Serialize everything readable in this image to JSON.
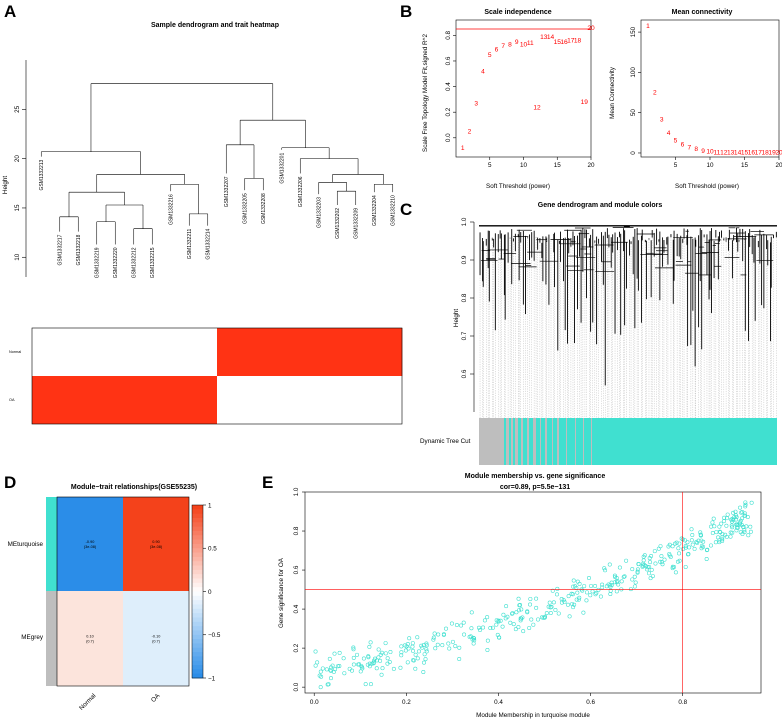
{
  "panel_labels": [
    "A",
    "B",
    "C",
    "D",
    "E"
  ],
  "colors": {
    "red": "#ff0000",
    "heat_red": "#ff3314",
    "turquoise": "#40e0d0",
    "grey": "#bebebe",
    "module_blue": "#2b8de8",
    "module_pink": "#fce4dc",
    "module_lightblue": "#deeefb",
    "module_orange": "#f4421b"
  },
  "chart_data": [
    {
      "id": "A",
      "type": "dendrogram_heatmap",
      "title": "Sample dendrogram and trait heatmap",
      "ylabel": "Height",
      "ylim": [
        8,
        30
      ],
      "yticks": [
        "10",
        "15",
        "20",
        "25"
      ],
      "leaves": [
        "GSM1332213",
        "GSM1332217",
        "GSM1332218",
        "GSM1332219",
        "GSM1332220",
        "GSM1332212",
        "GSM1332215",
        "GSM1332216",
        "GSM1332211",
        "GSM1332214",
        "GSM1332207",
        "GSM1332205",
        "GSM1332208",
        "GSM1332201",
        "GSM1332206",
        "GSM1332203",
        "GSM1332202",
        "GSM1332209",
        "GSM1332204",
        "GSM1332210"
      ],
      "traits": [
        "Normal",
        "OA"
      ],
      "trait_rows": {
        "Normal": [
          0,
          0,
          0,
          0,
          0,
          0,
          0,
          0,
          0,
          0,
          1,
          1,
          1,
          1,
          1,
          1,
          1,
          1,
          1,
          1
        ],
        "OA": [
          1,
          1,
          1,
          1,
          1,
          1,
          1,
          1,
          1,
          1,
          0,
          0,
          0,
          0,
          0,
          0,
          0,
          0,
          0,
          0
        ]
      }
    },
    {
      "id": "B1",
      "type": "scatter",
      "title": "Scale independence",
      "xlabel": "Soft Threshold (power)",
      "ylabel": "Scale Free Topology Model Fit,signed R^2",
      "xlim": [
        0,
        20
      ],
      "ylim": [
        -0.15,
        0.92
      ],
      "xticks": [
        "5",
        "10",
        "15",
        "20"
      ],
      "yticks": [
        "0.0",
        "0.2",
        "0.4",
        "0.6",
        "0.8"
      ],
      "hline": 0.85,
      "points": [
        {
          "x": 1,
          "y": -0.08,
          "label": "1"
        },
        {
          "x": 2,
          "y": 0.05,
          "label": "2"
        },
        {
          "x": 3,
          "y": 0.27,
          "label": "3"
        },
        {
          "x": 4,
          "y": 0.52,
          "label": "4"
        },
        {
          "x": 5,
          "y": 0.65,
          "label": "5"
        },
        {
          "x": 6,
          "y": 0.69,
          "label": "6"
        },
        {
          "x": 7,
          "y": 0.72,
          "label": "7"
        },
        {
          "x": 8,
          "y": 0.73,
          "label": "8"
        },
        {
          "x": 9,
          "y": 0.75,
          "label": "9"
        },
        {
          "x": 10,
          "y": 0.73,
          "label": "10"
        },
        {
          "x": 11,
          "y": 0.74,
          "label": "11"
        },
        {
          "x": 12,
          "y": 0.24,
          "label": "12"
        },
        {
          "x": 13,
          "y": 0.79,
          "label": "13"
        },
        {
          "x": 14,
          "y": 0.79,
          "label": "14"
        },
        {
          "x": 15,
          "y": 0.75,
          "label": "15"
        },
        {
          "x": 16,
          "y": 0.75,
          "label": "16"
        },
        {
          "x": 17,
          "y": 0.76,
          "label": "17"
        },
        {
          "x": 18,
          "y": 0.76,
          "label": "18"
        },
        {
          "x": 19,
          "y": 0.28,
          "label": "19"
        },
        {
          "x": 20,
          "y": 0.86,
          "label": "20"
        }
      ]
    },
    {
      "id": "B2",
      "type": "scatter",
      "title": "Mean connectivity",
      "xlabel": "Soft Threshold (power)",
      "ylabel": "Mean Connectivity",
      "xlim": [
        0,
        20
      ],
      "ylim": [
        -5,
        165
      ],
      "xticks": [
        "5",
        "10",
        "15",
        "20"
      ],
      "yticks": [
        "0",
        "50",
        "100",
        "150"
      ],
      "points": [
        {
          "x": 1,
          "y": 158,
          "label": "1"
        },
        {
          "x": 2,
          "y": 75,
          "label": "2"
        },
        {
          "x": 3,
          "y": 42,
          "label": "3"
        },
        {
          "x": 4,
          "y": 25,
          "label": "4"
        },
        {
          "x": 5,
          "y": 16,
          "label": "5"
        },
        {
          "x": 6,
          "y": 11,
          "label": "6"
        },
        {
          "x": 7,
          "y": 7,
          "label": "7"
        },
        {
          "x": 8,
          "y": 5,
          "label": "8"
        },
        {
          "x": 9,
          "y": 3,
          "label": "9"
        },
        {
          "x": 10,
          "y": 2,
          "label": "10"
        },
        {
          "x": 11,
          "y": 1,
          "label": "11"
        },
        {
          "x": 12,
          "y": 1,
          "label": "12"
        },
        {
          "x": 13,
          "y": 1,
          "label": "13"
        },
        {
          "x": 14,
          "y": 1,
          "label": "14"
        },
        {
          "x": 15,
          "y": 1,
          "label": "15"
        },
        {
          "x": 16,
          "y": 1,
          "label": "16"
        },
        {
          "x": 17,
          "y": 1,
          "label": "17"
        },
        {
          "x": 18,
          "y": 1,
          "label": "18"
        },
        {
          "x": 19,
          "y": 1,
          "label": "19"
        },
        {
          "x": 20,
          "y": 1,
          "label": "20"
        }
      ]
    },
    {
      "id": "C",
      "type": "dendrogram_colorbar",
      "title": "Gene dendrogram and module colors",
      "ylabel": "Height",
      "ylim": [
        0.5,
        1.0
      ],
      "yticks": [
        "0.6",
        "0.7",
        "0.8",
        "0.9",
        "1.0"
      ],
      "colorbar_label": "Dynamic Tree Cut",
      "modules": [
        "turquoise",
        "grey"
      ]
    },
    {
      "id": "D",
      "type": "heatmap",
      "title": "Module−trait relationships(GSE55235)",
      "rows": [
        "MEturquoise",
        "MEgrey"
      ],
      "cols": [
        "Normal",
        "OA"
      ],
      "values": [
        [
          -0.9,
          0.9
        ],
        [
          0.1,
          -0.1
        ]
      ],
      "cell_text": [
        [
          "-0.90\n(3e-08)",
          "0.90\n(3e-08)"
        ],
        [
          "0.10\n(0.7)",
          "-0.10\n(0.7)"
        ]
      ],
      "scale_ticks": [
        "1",
        "0.5",
        "0",
        "−0.5",
        "−1"
      ],
      "scale_range": [
        -1,
        1
      ]
    },
    {
      "id": "E",
      "type": "scatter",
      "title": "Module membership vs. gene significance",
      "subtitle": "cor=0.89, p=5.5e−131",
      "xlabel": "Module Membership in turquoise module",
      "ylabel": "Gene significance for  OA",
      "xlim": [
        -0.02,
        0.97
      ],
      "ylim": [
        -0.03,
        1.0
      ],
      "xticks": [
        "0.0",
        "0.2",
        "0.4",
        "0.6",
        "0.8"
      ],
      "yticks": [
        "0.0",
        "0.2",
        "0.4",
        "0.6",
        "0.8",
        "1.0"
      ],
      "vline": 0.8,
      "hline": 0.5,
      "n_points": 420,
      "correlation": 0.89
    }
  ]
}
